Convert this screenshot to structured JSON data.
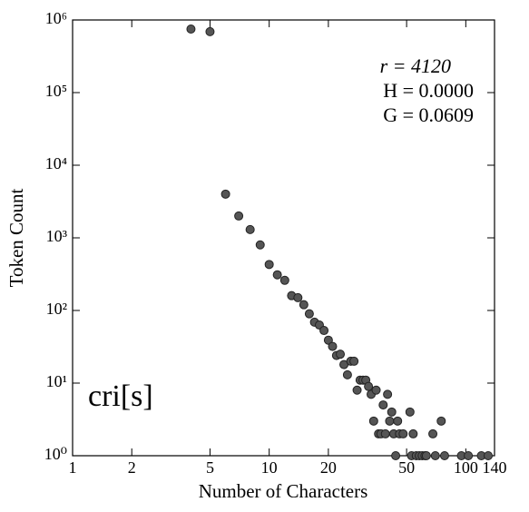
{
  "chart_data": {
    "type": "scatter",
    "xlabel": "Number of Characters",
    "ylabel": "Token Count",
    "annotations": [
      "r = 4120",
      "H = 0.0000",
      "G = 0.0609"
    ],
    "label": "cri[s]",
    "xscale": "log",
    "yscale": "log",
    "xlim": [
      1,
      140
    ],
    "ylim": [
      1,
      1000000
    ],
    "xticks": [
      1,
      2,
      5,
      10,
      20,
      50,
      100,
      140
    ],
    "yticks": [
      {
        "value": 1,
        "label": "10⁰"
      },
      {
        "value": 10,
        "label": "10¹"
      },
      {
        "value": 100,
        "label": "10²"
      },
      {
        "value": 1000,
        "label": "10³"
      },
      {
        "value": 10000,
        "label": "10⁴"
      },
      {
        "value": 100000,
        "label": "10⁵"
      },
      {
        "value": 1000000,
        "label": "10⁶"
      }
    ],
    "color": "#555555",
    "x": [
      4,
      5,
      6,
      7,
      8,
      9,
      10,
      11,
      12,
      13,
      14,
      15,
      16,
      17,
      18,
      19,
      20,
      21,
      22,
      23,
      24,
      25,
      26,
      27,
      28,
      29,
      30,
      31,
      32,
      33,
      34,
      35,
      36,
      37,
      38,
      39,
      40,
      41,
      42,
      43,
      44,
      45,
      46,
      48,
      52,
      53,
      54,
      56,
      58,
      60,
      62,
      63,
      68,
      70,
      75,
      78,
      95,
      103,
      120,
      130
    ],
    "y": [
      750000,
      690000,
      4000,
      2000,
      1300,
      800,
      430,
      310,
      260,
      160,
      150,
      120,
      90,
      69,
      63,
      53,
      39,
      32,
      24,
      25,
      18,
      13,
      20,
      20,
      8,
      11,
      11,
      11,
      9,
      7,
      3,
      8,
      2,
      2,
      5,
      2,
      7,
      3,
      4,
      2,
      1,
      3,
      2,
      2,
      4,
      1,
      2,
      1,
      1,
      1,
      1,
      1,
      2,
      1,
      3,
      1,
      1,
      1,
      1,
      1
    ]
  }
}
